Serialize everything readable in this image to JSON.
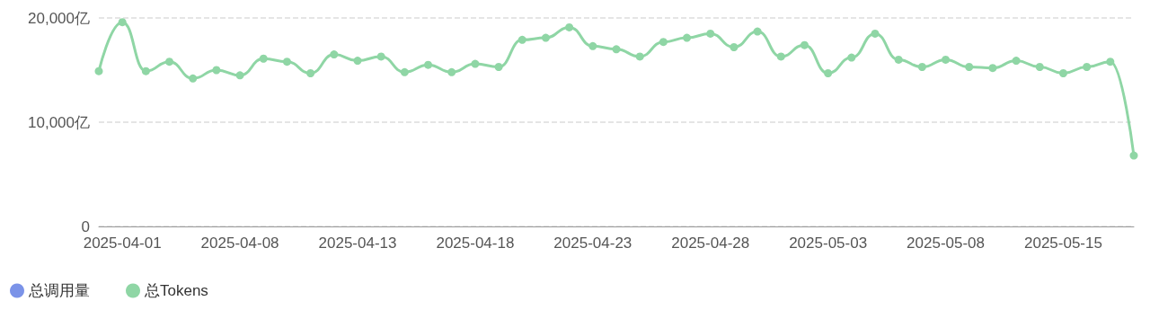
{
  "chart_data": {
    "type": "line",
    "categories": [
      null,
      "2025-04-01",
      null,
      null,
      null,
      null,
      "2025-04-08",
      null,
      null,
      null,
      null,
      "2025-04-13",
      null,
      null,
      null,
      null,
      "2025-04-18",
      null,
      null,
      null,
      null,
      "2025-04-23",
      null,
      null,
      null,
      null,
      "2025-04-28",
      null,
      null,
      null,
      null,
      "2025-05-03",
      null,
      null,
      null,
      null,
      "2025-05-08",
      null,
      null,
      null,
      null,
      "2025-05-15",
      null,
      null,
      null
    ],
    "series": [
      {
        "name": "总调用量",
        "color": "#7b93e8",
        "values": [
          null,
          null,
          null,
          null,
          null,
          null,
          null,
          null,
          null,
          null,
          null,
          null,
          null,
          null,
          null,
          null,
          null,
          null,
          null,
          null,
          null,
          null,
          null,
          null,
          null,
          null,
          null,
          null,
          null,
          null,
          null,
          null,
          null,
          null,
          null,
          null,
          null,
          null,
          null,
          null,
          null,
          null,
          null,
          null,
          null
        ]
      },
      {
        "name": "总Tokens",
        "color": "#8fd6a5",
        "values": [
          14900,
          19600,
          14900,
          15800,
          14200,
          15000,
          14500,
          16100,
          15800,
          14700,
          16500,
          15900,
          16300,
          14800,
          15500,
          14800,
          15600,
          15300,
          17900,
          18100,
          19100,
          17300,
          17000,
          16300,
          17700,
          18100,
          18500,
          17200,
          18700,
          16300,
          17400,
          14700,
          16200,
          18500,
          16000,
          15300,
          16000,
          15300,
          15200,
          15900,
          15300,
          14700,
          15300,
          15800,
          6800
        ]
      }
    ],
    "ylim": [
      0,
      20000
    ],
    "yticks": [
      0,
      {
        "value": 10000,
        "label": "10,000亿"
      },
      {
        "value": 20000,
        "label": "20,000亿"
      }
    ],
    "grid": "y",
    "legend": "bottom left",
    "marker": "circle"
  }
}
